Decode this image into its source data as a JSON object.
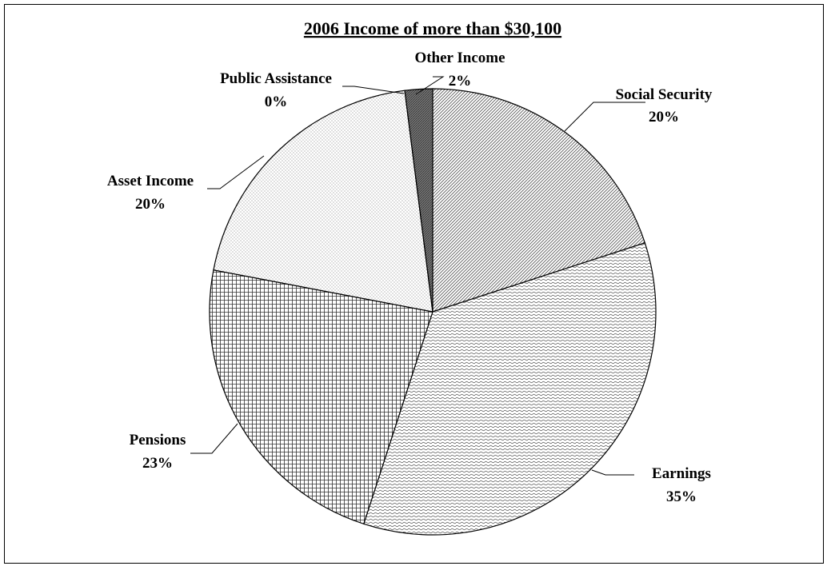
{
  "chart_data": {
    "type": "pie",
    "title": "2006 Income of more than $30,100",
    "start_angle_deg": 0,
    "direction": "clockwise",
    "slices": [
      {
        "name": "Social Security",
        "value": 20,
        "label": "20%",
        "pattern": "diag-right"
      },
      {
        "name": "Earnings",
        "value": 35,
        "label": "35%",
        "pattern": "waves"
      },
      {
        "name": "Pensions",
        "value": 23,
        "label": "23%",
        "pattern": "grid"
      },
      {
        "name": "Asset Income",
        "value": 20,
        "label": "20%",
        "pattern": "dots"
      },
      {
        "name": "Public Assistance",
        "value": 0,
        "label": "0%",
        "pattern": "none"
      },
      {
        "name": "Other Income",
        "value": 2,
        "label": "2%",
        "pattern": "dark-diag"
      }
    ]
  }
}
